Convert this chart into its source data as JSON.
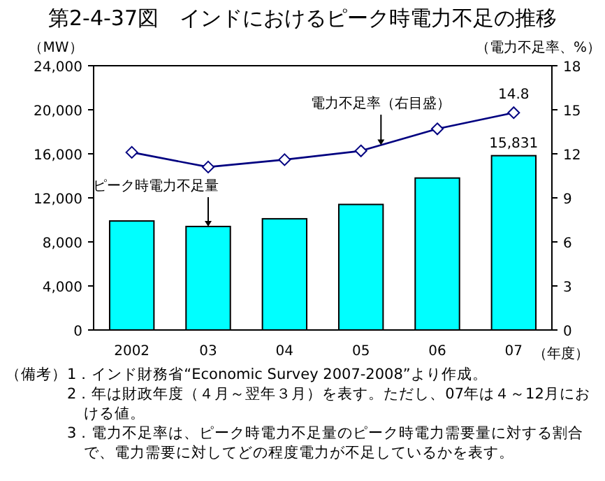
{
  "chart_data": {
    "type": "bar",
    "title": "第2-4-37図　インドにおけるピーク時電力不足の推移",
    "ylabel": "（MW）",
    "y2label": "（電力不足率、%）",
    "xlabel": "（年度）",
    "categories": [
      "2002",
      "03",
      "04",
      "05",
      "06",
      "07"
    ],
    "series": [
      {
        "name": "ピーク時電力不足量",
        "color": "#00ffff",
        "values": [
          9900,
          9400,
          10100,
          11400,
          13800,
          15831
        ],
        "value_labels": [
          null,
          null,
          null,
          null,
          null,
          "15,831"
        ]
      },
      {
        "name": "電力不足率（右目盛）",
        "type": "line",
        "axis": "y2",
        "color": "#000080",
        "marker": "diamond",
        "values": [
          12.1,
          11.1,
          11.6,
          12.2,
          13.7,
          14.8
        ],
        "value_labels": [
          null,
          null,
          null,
          null,
          null,
          "14.8"
        ]
      }
    ],
    "ylim": [
      0,
      24000
    ],
    "yticks": [
      {
        "value": 0,
        "label": "0"
      },
      {
        "value": 4000,
        "label": "4,000"
      },
      {
        "value": 8000,
        "label": "8,000"
      },
      {
        "value": 12000,
        "label": "12,000"
      },
      {
        "value": 16000,
        "label": "16,000"
      },
      {
        "value": 20000,
        "label": "20,000"
      },
      {
        "value": 24000,
        "label": "24,000"
      }
    ],
    "y2lim": [
      0,
      18
    ],
    "y2ticks": [
      0,
      3,
      6,
      9,
      12,
      15,
      18
    ],
    "grid": false,
    "legend": false,
    "annotations": [
      "（備考）1．インド財務省“Economic Survey 2007-2008”より作成。",
      "2．年は財政年度（４月～翌年３月）を表す。ただし、07年は４～12月における値。",
      "3．電力不足率は、ピーク時電力不足量のピーク時電力需要量に対する割合で、電力需要に対してどの程度電力が不足しているかを表す。"
    ]
  }
}
